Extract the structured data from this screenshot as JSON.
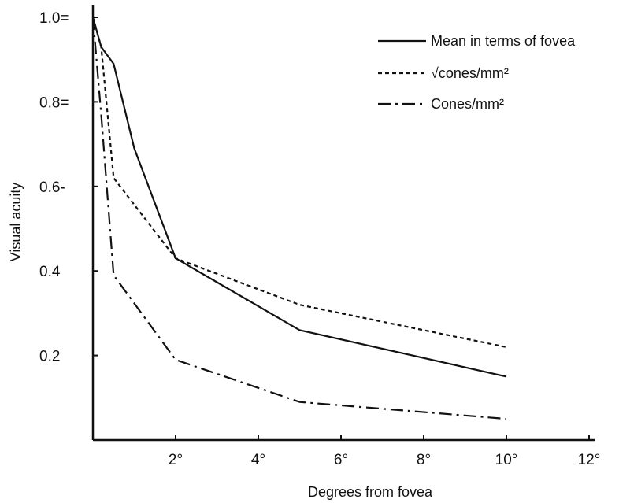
{
  "chart_data": {
    "type": "line",
    "xlabel": "Degrees from fovea",
    "ylabel": "Visual acuity",
    "xlim": [
      0,
      12
    ],
    "ylim": [
      0,
      1.0
    ],
    "x_ticks": [
      {
        "value": 2,
        "label": "2°"
      },
      {
        "value": 4,
        "label": "4°"
      },
      {
        "value": 6,
        "label": "6°"
      },
      {
        "value": 8,
        "label": "8°"
      },
      {
        "value": 10,
        "label": "10°"
      },
      {
        "value": 12,
        "label": "12°"
      }
    ],
    "y_ticks": [
      {
        "value": 0.2,
        "label": "0.2"
      },
      {
        "value": 0.4,
        "label": "0.4"
      },
      {
        "value": 0.6,
        "label": "0.6-"
      },
      {
        "value": 0.8,
        "label": "0.8="
      },
      {
        "value": 1.0,
        "label": "1.0="
      }
    ],
    "grid": false,
    "legend_position": "top-right",
    "series": [
      {
        "name": "Mean in terms of fovea",
        "style": "solid",
        "x": [
          0,
          0.2,
          0.5,
          1.0,
          2.0,
          5.0,
          10.0
        ],
        "y": [
          1.0,
          0.93,
          0.89,
          0.69,
          0.43,
          0.26,
          0.15
        ]
      },
      {
        "name": "√cones/mm²",
        "style": "dotted",
        "x": [
          0,
          0.2,
          0.5,
          2.0,
          5.0,
          10.0
        ],
        "y": [
          1.0,
          0.93,
          0.62,
          0.43,
          0.32,
          0.22
        ]
      },
      {
        "name": "Cones/mm²",
        "style": "dashdot",
        "x": [
          0,
          0.2,
          0.5,
          2.0,
          5.0,
          10.0
        ],
        "y": [
          1.0,
          0.77,
          0.39,
          0.19,
          0.09,
          0.05
        ]
      }
    ]
  }
}
